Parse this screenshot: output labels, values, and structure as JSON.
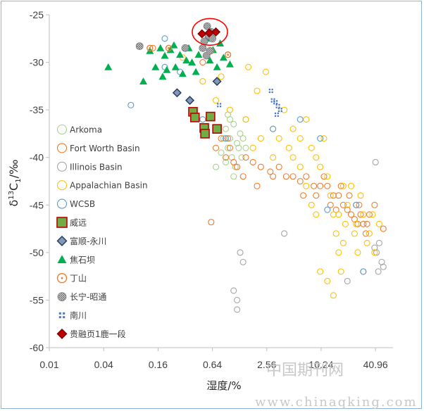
{
  "chart_data": {
    "type": "scatter",
    "x_scale": "log2",
    "x_ticks": [
      0.01,
      0.04,
      0.16,
      0.64,
      2.56,
      10.24,
      40.96
    ],
    "x_tick_labels": [
      "0.01",
      "0.04",
      "0.16",
      "0.64",
      "2.56",
      "10.24",
      "40.96"
    ],
    "xlim": [
      0.01,
      64
    ],
    "ylim": [
      -60,
      -25
    ],
    "y_ticks": [
      -60,
      -55,
      -50,
      -45,
      -40,
      -35,
      -30,
      -25
    ],
    "xlabel": "湿度/%",
    "ylabel_main": "δ",
    "ylabel_sup": "13",
    "ylabel_c": "C",
    "ylabel_sub": "1",
    "ylabel_unit": "/‰",
    "legend_position": "left",
    "grid": false,
    "series": [
      {
        "name": "Arkoma",
        "marker": "circle-open",
        "color": "#a9d18e",
        "points": [
          [
            0.9,
            -37
          ],
          [
            1.0,
            -38
          ],
          [
            1.1,
            -36.5
          ],
          [
            0.95,
            -39
          ],
          [
            1.2,
            -38.5
          ],
          [
            1.05,
            -40
          ],
          [
            0.85,
            -38
          ],
          [
            1.3,
            -37.5
          ],
          [
            0.8,
            -39.5
          ],
          [
            1.15,
            -41
          ],
          [
            1.25,
            -39
          ],
          [
            0.9,
            -40.5
          ],
          [
            1.4,
            -38
          ],
          [
            0.75,
            -37
          ],
          [
            1.0,
            -36
          ],
          [
            1.1,
            -42
          ],
          [
            0.7,
            -41
          ],
          [
            1.35,
            -40
          ],
          [
            1.5,
            -39
          ],
          [
            0.95,
            -35.5
          ]
        ]
      },
      {
        "name": "Fort Worth Basin",
        "marker": "circle-open",
        "color": "#ed7d31",
        "points": [
          [
            0.14,
            -28.5
          ],
          [
            0.5,
            -30
          ],
          [
            0.62,
            -46.8
          ],
          [
            0.7,
            -39
          ],
          [
            0.9,
            -40
          ],
          [
            1.2,
            -41
          ],
          [
            1.5,
            -40
          ],
          [
            1.8,
            -40.5
          ],
          [
            2.2,
            -41
          ],
          [
            2.8,
            -41.5
          ],
          [
            3.5,
            -41
          ],
          [
            4.2,
            -42
          ],
          [
            5,
            -42
          ],
          [
            6,
            -42.5
          ],
          [
            7,
            -42
          ],
          [
            8.5,
            -43
          ],
          [
            10,
            -43
          ],
          [
            12,
            -43
          ],
          [
            14,
            -44
          ],
          [
            16,
            -44
          ],
          [
            18,
            -45
          ],
          [
            20,
            -45.5
          ],
          [
            22,
            -46
          ],
          [
            24,
            -46.5
          ],
          [
            26,
            -47
          ],
          [
            28,
            -46
          ],
          [
            30,
            -47
          ],
          [
            32,
            -48
          ],
          [
            35,
            -46
          ],
          [
            25,
            -45
          ],
          [
            1.0,
            -39
          ],
          [
            1.4,
            -42
          ],
          [
            2.0,
            -43
          ],
          [
            3.0,
            -42
          ],
          [
            0.8,
            -38
          ],
          [
            1.1,
            -40.5
          ],
          [
            0.95,
            -38
          ],
          [
            6.5,
            -44
          ],
          [
            9,
            -44
          ],
          [
            13,
            -45
          ],
          [
            17,
            -43
          ],
          [
            21,
            -44
          ],
          [
            27,
            -45
          ],
          [
            33,
            -47
          ],
          [
            40,
            -45
          ],
          [
            50,
            -47.5
          ],
          [
            11,
            -42
          ],
          [
            15,
            -45.5
          ]
        ]
      },
      {
        "name": "Illinois Basin",
        "marker": "circle-open",
        "color": "#a5a5a5",
        "points": [
          [
            1.3,
            -50
          ],
          [
            1.4,
            -51
          ],
          [
            1.1,
            -54
          ],
          [
            1.2,
            -55
          ],
          [
            1.2,
            -56
          ],
          [
            4,
            -48
          ],
          [
            30,
            -52
          ],
          [
            40,
            -49.5
          ],
          [
            42,
            -50
          ],
          [
            45,
            -49
          ],
          [
            48,
            -51
          ],
          [
            44,
            -52
          ],
          [
            50,
            -51.5
          ],
          [
            41,
            -40.5
          ],
          [
            20,
            -53
          ],
          [
            1.5,
            -36
          ]
        ]
      },
      {
        "name": "Appalachian Basin",
        "marker": "circle-open",
        "color": "#ffc000",
        "points": [
          [
            0.5,
            -32
          ],
          [
            0.7,
            -34
          ],
          [
            1.0,
            -35
          ],
          [
            1.5,
            -36
          ],
          [
            2,
            -33
          ],
          [
            2.5,
            -31
          ],
          [
            3,
            -37
          ],
          [
            3.5,
            -38
          ],
          [
            4,
            -35
          ],
          [
            5,
            -37
          ],
          [
            6,
            -38
          ],
          [
            7,
            -36
          ],
          [
            8,
            -39
          ],
          [
            9,
            -40
          ],
          [
            10,
            -41
          ],
          [
            11,
            -38
          ],
          [
            12,
            -42
          ],
          [
            13,
            -44
          ],
          [
            14,
            -46
          ],
          [
            15,
            -48
          ],
          [
            16,
            -50
          ],
          [
            17,
            -52
          ],
          [
            18,
            -49
          ],
          [
            19,
            -47
          ],
          [
            20,
            -45
          ],
          [
            22,
            -43
          ],
          [
            24,
            -48
          ],
          [
            26,
            -50
          ],
          [
            28,
            -44
          ],
          [
            30,
            -46
          ],
          [
            35,
            -48
          ],
          [
            40,
            -50
          ],
          [
            45,
            -47
          ],
          [
            10,
            -52
          ],
          [
            12,
            -53
          ],
          [
            14,
            -54.5
          ],
          [
            9,
            -46
          ],
          [
            8,
            -45
          ],
          [
            7,
            -43
          ],
          [
            6,
            -41
          ],
          [
            5,
            -40
          ],
          [
            4.5,
            -39
          ],
          [
            3,
            -40
          ],
          [
            2.2,
            -38
          ],
          [
            1.8,
            -39
          ],
          [
            1.6,
            -30.5
          ],
          [
            0.8,
            -31.5
          ],
          [
            0.3,
            -29.5
          ],
          [
            16,
            -46
          ],
          [
            18,
            -43
          ],
          [
            25,
            -47
          ],
          [
            33,
            -49
          ],
          [
            38,
            -46
          ]
        ]
      },
      {
        "name": "WCSB",
        "marker": "circle-open",
        "color": "#5b9bd5",
        "points": [
          [
            0.19,
            -27.5
          ],
          [
            0.19,
            -30.5
          ],
          [
            0.08,
            -34.5
          ],
          [
            0.28,
            -31
          ],
          [
            0.5,
            -36
          ],
          [
            0.9,
            -38
          ],
          [
            3,
            -37
          ],
          [
            6,
            -36
          ],
          [
            12,
            -45.5
          ],
          [
            25,
            -45
          ],
          [
            30,
            -52
          ],
          [
            10,
            -38
          ]
        ]
      },
      {
        "name": "威远",
        "marker": "square",
        "color": "#70ad47",
        "edge": "#c00000",
        "points": [
          [
            0.39,
            -35.2
          ],
          [
            0.41,
            -35.8
          ],
          [
            0.52,
            -36.9
          ],
          [
            0.53,
            -37.5
          ],
          [
            0.61,
            -35.7
          ],
          [
            0.72,
            -37
          ]
        ]
      },
      {
        "name": "富顺-永川",
        "marker": "diamond",
        "color": "#8497b0",
        "edge": "#203864",
        "points": [
          [
            0.26,
            -33.2
          ],
          [
            0.36,
            -34
          ],
          [
            0.72,
            -32
          ]
        ]
      },
      {
        "name": "焦石坝",
        "marker": "triangle",
        "color": "#00b050",
        "points": [
          [
            0.045,
            -30.5
          ],
          [
            0.11,
            -32
          ],
          [
            0.13,
            -28.8
          ],
          [
            0.15,
            -30.5
          ],
          [
            0.17,
            -28.5
          ],
          [
            0.19,
            -29.3
          ],
          [
            0.2,
            -30.8
          ],
          [
            0.22,
            -28.7
          ],
          [
            0.25,
            -30.5
          ],
          [
            0.28,
            -29.2
          ],
          [
            0.3,
            -31.2
          ],
          [
            0.35,
            -28.5
          ],
          [
            0.38,
            -30
          ],
          [
            0.42,
            -31
          ],
          [
            0.45,
            -29.2
          ],
          [
            0.5,
            -28.3
          ],
          [
            0.55,
            -27.5
          ],
          [
            0.6,
            -29.8
          ],
          [
            0.65,
            -28.7
          ],
          [
            0.72,
            -30.5
          ],
          [
            0.85,
            -29.5
          ],
          [
            1.0,
            -30.2
          ],
          [
            0.78,
            -28
          ],
          [
            0.18,
            -31.5
          ],
          [
            0.24,
            -28.2
          ],
          [
            0.33,
            -29.8
          ]
        ]
      },
      {
        "name": "丁山",
        "marker": "circle-open-dot",
        "color": "#ed7d31",
        "points": [
          [
            0.13,
            -28.5
          ],
          [
            0.21,
            -28.5
          ],
          [
            0.62,
            -28.8
          ],
          [
            0.95,
            -29.2
          ]
        ]
      },
      {
        "name": "长宁-昭通",
        "marker": "circle-hatch",
        "color": "#a5a5a5",
        "points": [
          [
            0.1,
            -28.3
          ],
          [
            0.32,
            -28.5
          ],
          [
            0.5,
            -28.5
          ],
          [
            0.55,
            -29.3
          ],
          [
            0.6,
            -28.8
          ],
          [
            0.52,
            -27.8
          ],
          [
            0.58,
            -27.2
          ],
          [
            0.62,
            -26.8
          ],
          [
            0.56,
            -26.2
          ],
          [
            0.64,
            -27.5
          ]
        ]
      },
      {
        "name": "南川",
        "marker": "cross-square",
        "color": "#4472c4",
        "points": [
          [
            0.76,
            -34.5
          ],
          [
            2.85,
            -33
          ],
          [
            3.0,
            -34
          ],
          [
            3.2,
            -34.2
          ],
          [
            3.4,
            -34.6
          ],
          [
            3.6,
            -35
          ],
          [
            3.3,
            -35.5
          ]
        ]
      },
      {
        "name": "贵融页1鹿一段",
        "marker": "diamond",
        "color": "#c00000",
        "edge": "#7f0000",
        "points": [
          [
            0.49,
            -27
          ],
          [
            0.59,
            -26.9
          ],
          [
            0.7,
            -26.8
          ]
        ]
      }
    ],
    "annotations": [
      {
        "type": "ellipse",
        "x": 0.6,
        "y": -26.8,
        "color": "#ff0000"
      }
    ]
  },
  "watermark": {
    "line1": "中国期刊网",
    "line2": "www.chinaqking.com"
  }
}
